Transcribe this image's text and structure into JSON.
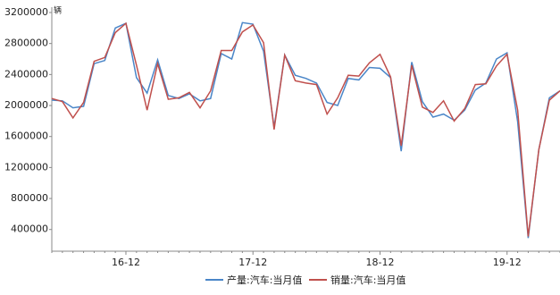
{
  "chart_data": {
    "type": "line",
    "unit": "辆",
    "categories": [
      null,
      null,
      null,
      null,
      null,
      null,
      null,
      "16-12",
      null,
      null,
      null,
      null,
      null,
      null,
      null,
      null,
      null,
      null,
      null,
      "17-12",
      null,
      null,
      null,
      null,
      null,
      null,
      null,
      null,
      null,
      null,
      null,
      "18-12",
      null,
      null,
      null,
      null,
      null,
      null,
      null,
      null,
      null,
      null,
      null,
      "19-12",
      null,
      null,
      null,
      null,
      null
    ],
    "series": [
      {
        "name": "产量:汽车:当月值",
        "color": "#4a86c8",
        "values": [
          2070000,
          2060000,
          1970000,
          1990000,
          2540000,
          2580000,
          3000000,
          3060000,
          2360000,
          2160000,
          2590000,
          2130000,
          2090000,
          2150000,
          2060000,
          2090000,
          2670000,
          2600000,
          3070000,
          3050000,
          2700000,
          1720000,
          2650000,
          2390000,
          2350000,
          2290000,
          2040000,
          2000000,
          2350000,
          2330000,
          2490000,
          2480000,
          2360000,
          1410000,
          2560000,
          2050000,
          1850000,
          1890000,
          1810000,
          1940000,
          2200000,
          2290000,
          2600000,
          2680000,
          1790000,
          290000,
          1430000,
          2100000,
          2190000
        ]
      },
      {
        "name": "销量:汽车:当月值",
        "color": "#c0504d",
        "values": [
          2090000,
          2050000,
          1840000,
          2040000,
          2570000,
          2620000,
          2940000,
          3060000,
          2520000,
          1940000,
          2540000,
          2080000,
          2100000,
          2170000,
          1970000,
          2190000,
          2710000,
          2710000,
          2950000,
          3040000,
          2810000,
          1690000,
          2650000,
          2320000,
          2290000,
          2270000,
          1890000,
          2100000,
          2390000,
          2380000,
          2550000,
          2660000,
          2370000,
          1480000,
          2520000,
          1980000,
          1910000,
          2060000,
          1800000,
          1960000,
          2270000,
          2280000,
          2510000,
          2660000,
          1940000,
          310000,
          1430000,
          2070000,
          2190000
        ]
      }
    ],
    "ylim": [
      120000,
      3200000
    ],
    "yticks": [
      400000,
      800000,
      1200000,
      1600000,
      2000000,
      2400000,
      2800000,
      3200000
    ],
    "grid": false,
    "legend": "bottom"
  }
}
